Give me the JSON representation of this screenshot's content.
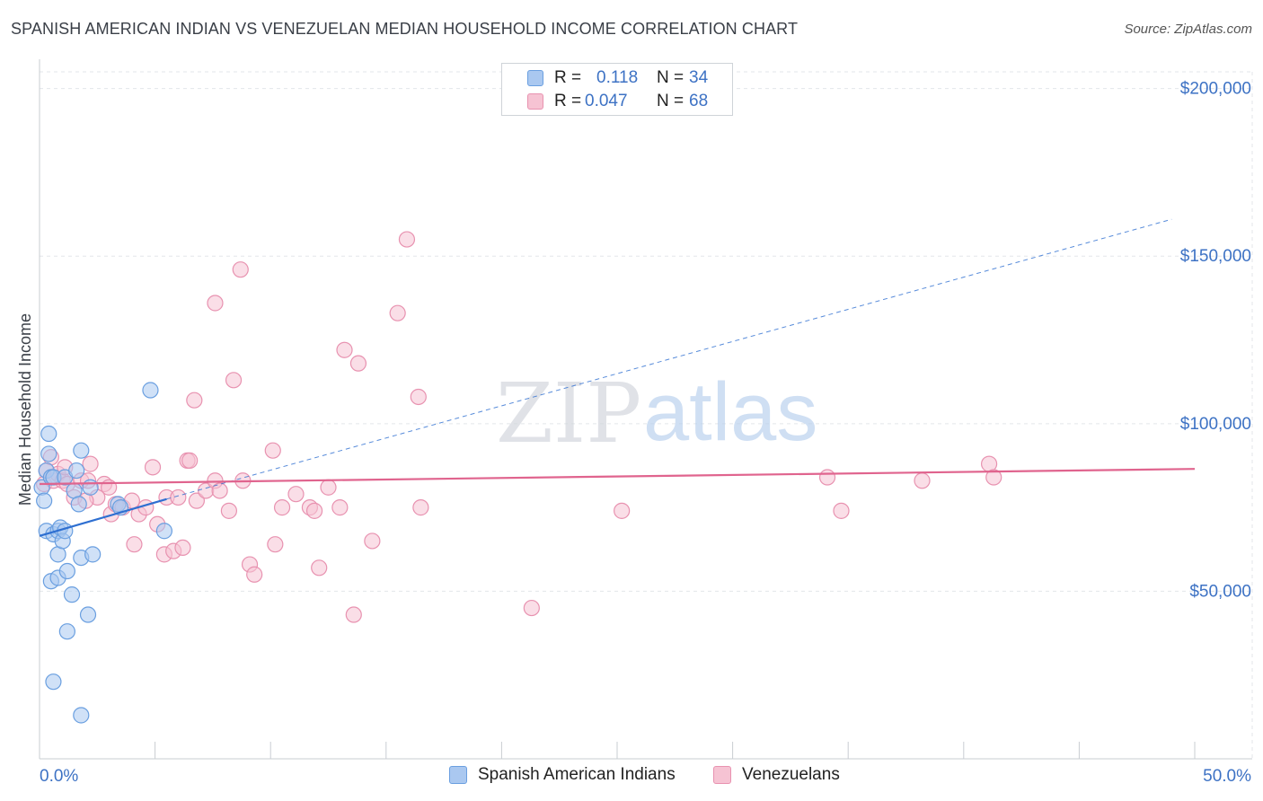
{
  "title": "SPANISH AMERICAN INDIAN VS VENEZUELAN MEDIAN HOUSEHOLD INCOME CORRELATION CHART",
  "source": "Source: ZipAtlas.com",
  "watermark": {
    "zip": "ZIP",
    "atlas": "atlas"
  },
  "legend": {
    "rows": [
      {
        "r_label": "R =",
        "r_value": "0.118",
        "n_label": "N =",
        "n_value": "34"
      },
      {
        "r_label": "R =",
        "r_value": "0.047",
        "n_label": "N =",
        "n_value": "68"
      }
    ]
  },
  "colors": {
    "blue_fill": "#aac8f0",
    "blue_stroke": "#6a9fe0",
    "blue_line": "#2e6fd1",
    "pink_fill": "#f6c3d3",
    "pink_stroke": "#e892b0",
    "pink_line": "#e0648e",
    "grid": "#e3e6ea",
    "axis_text": "#3d72c4"
  },
  "chart_data": {
    "type": "scatter",
    "title": "SPANISH AMERICAN INDIAN VS VENEZUELAN MEDIAN HOUSEHOLD INCOME CORRELATION CHART",
    "xlabel": "",
    "ylabel": "Median Household Income",
    "xlim": [
      0,
      50
    ],
    "ylim": [
      0,
      205000
    ],
    "x_tick_labels": [
      "0.0%",
      "50.0%"
    ],
    "y_ticks": [
      50000,
      100000,
      150000,
      200000
    ],
    "y_tick_labels": [
      "$50,000",
      "$100,000",
      "$150,000",
      "$200,000"
    ],
    "grid": true,
    "series": [
      {
        "name": "Spanish American Indians",
        "color": "blue",
        "trend": {
          "x": [
            0.0,
            5.5
          ],
          "y": [
            66500,
            77500
          ],
          "extended_to": [
            49.0,
            161000
          ]
        },
        "points": [
          [
            0.1,
            81000
          ],
          [
            0.2,
            77000
          ],
          [
            0.3,
            68000
          ],
          [
            0.3,
            86000
          ],
          [
            0.4,
            97000
          ],
          [
            0.4,
            91000
          ],
          [
            0.5,
            53000
          ],
          [
            0.5,
            84000
          ],
          [
            0.6,
            84000
          ],
          [
            0.6,
            23000
          ],
          [
            0.6,
            67000
          ],
          [
            0.8,
            54000
          ],
          [
            0.8,
            61000
          ],
          [
            0.8,
            68000
          ],
          [
            0.9,
            69000
          ],
          [
            1.0,
            65000
          ],
          [
            1.1,
            68000
          ],
          [
            1.1,
            84000
          ],
          [
            1.2,
            56000
          ],
          [
            1.2,
            38000
          ],
          [
            1.4,
            49000
          ],
          [
            1.5,
            80000
          ],
          [
            1.6,
            86000
          ],
          [
            1.7,
            76000
          ],
          [
            1.8,
            92000
          ],
          [
            1.8,
            13000
          ],
          [
            1.8,
            60000
          ],
          [
            2.1,
            43000
          ],
          [
            2.2,
            81000
          ],
          [
            2.3,
            61000
          ],
          [
            3.4,
            76000
          ],
          [
            3.5,
            75000
          ],
          [
            4.8,
            110000
          ],
          [
            5.4,
            68000
          ]
        ]
      },
      {
        "name": "Venezuelans",
        "color": "pink",
        "trend": {
          "x": [
            0.0,
            50.0
          ],
          "y": [
            82000,
            86500
          ]
        },
        "points": [
          [
            0.2,
            82000
          ],
          [
            0.3,
            86000
          ],
          [
            0.5,
            90000
          ],
          [
            0.6,
            83000
          ],
          [
            0.8,
            85000
          ],
          [
            1.0,
            83000
          ],
          [
            1.1,
            87000
          ],
          [
            1.2,
            82000
          ],
          [
            1.5,
            78000
          ],
          [
            1.8,
            83000
          ],
          [
            2.1,
            83000
          ],
          [
            2.2,
            88000
          ],
          [
            2.5,
            78000
          ],
          [
            2.8,
            82000
          ],
          [
            3.0,
            81000
          ],
          [
            3.1,
            73000
          ],
          [
            3.3,
            76000
          ],
          [
            3.6,
            75000
          ],
          [
            4.0,
            77000
          ],
          [
            4.1,
            64000
          ],
          [
            4.3,
            73000
          ],
          [
            4.6,
            75000
          ],
          [
            4.9,
            87000
          ],
          [
            5.1,
            70000
          ],
          [
            5.4,
            61000
          ],
          [
            5.5,
            78000
          ],
          [
            5.8,
            62000
          ],
          [
            6.0,
            78000
          ],
          [
            6.2,
            63000
          ],
          [
            6.4,
            89000
          ],
          [
            6.5,
            89000
          ],
          [
            6.7,
            107000
          ],
          [
            6.8,
            77000
          ],
          [
            7.2,
            80000
          ],
          [
            7.6,
            136000
          ],
          [
            7.6,
            83000
          ],
          [
            7.8,
            80000
          ],
          [
            8.2,
            74000
          ],
          [
            8.4,
            113000
          ],
          [
            8.7,
            146000
          ],
          [
            8.8,
            83000
          ],
          [
            9.1,
            58000
          ],
          [
            9.3,
            55000
          ],
          [
            10.1,
            92000
          ],
          [
            10.2,
            64000
          ],
          [
            10.5,
            75000
          ],
          [
            11.1,
            79000
          ],
          [
            11.7,
            75000
          ],
          [
            11.9,
            74000
          ],
          [
            12.1,
            57000
          ],
          [
            12.5,
            81000
          ],
          [
            13.0,
            75000
          ],
          [
            13.2,
            122000
          ],
          [
            13.6,
            43000
          ],
          [
            13.8,
            118000
          ],
          [
            14.4,
            65000
          ],
          [
            15.5,
            133000
          ],
          [
            15.9,
            155000
          ],
          [
            16.4,
            108000
          ],
          [
            16.5,
            75000
          ],
          [
            21.3,
            45000
          ],
          [
            25.2,
            74000
          ],
          [
            34.1,
            84000
          ],
          [
            34.7,
            74000
          ],
          [
            38.2,
            83000
          ],
          [
            41.1,
            88000
          ],
          [
            41.3,
            84000
          ],
          [
            2.0,
            77000
          ]
        ]
      }
    ]
  }
}
